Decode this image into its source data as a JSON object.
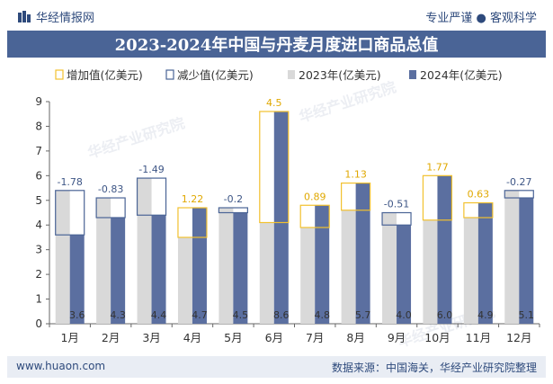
{
  "header": {
    "brand_left": "华经情报网",
    "brand_right": "专业严谨 ● 客观科学",
    "title": "2023-2024年中国与丹麦月度进口商品总值"
  },
  "footer": {
    "website": "www.huaon.com",
    "source": "数据来源：中国海关，华经产业研究院整理"
  },
  "watermarks": [
    "华经产业研究院",
    "www.huaon.com"
  ],
  "colors": {
    "increase": "#f2c12e",
    "decrease": "#4a6496",
    "series2023": "#d9d9d9",
    "series2024": "#5b6fa0",
    "title_band": "#4a6496"
  },
  "chart_data": {
    "type": "bar",
    "title": "2023-2024年中国与丹麦月度进口商品总值",
    "categories": [
      "1月",
      "2月",
      "3月",
      "4月",
      "5月",
      "6月",
      "7月",
      "8月",
      "9月",
      "10月",
      "11月",
      "12月"
    ],
    "series": [
      {
        "name": "2023年(亿美元)",
        "values": [
          5.4,
          5.1,
          5.9,
          3.5,
          4.7,
          4.1,
          3.9,
          4.6,
          4.5,
          4.2,
          4.3,
          5.4
        ]
      },
      {
        "name": "2024年(亿美元)",
        "values": [
          3.6,
          4.3,
          4.4,
          4.7,
          4.5,
          8.6,
          4.8,
          5.7,
          4.0,
          6.0,
          4.9,
          5.1
        ]
      }
    ],
    "changes": [
      -1.78,
      -0.83,
      -1.49,
      1.22,
      -0.2,
      4.5,
      0.89,
      1.13,
      -0.51,
      1.77,
      0.63,
      -0.27
    ],
    "change_labels": [
      "-1.78",
      "-0.83",
      "-1.49",
      "1.22",
      "-0.2",
      "4.5",
      "0.89",
      "1.13",
      "-0.51",
      "1.77",
      "0.63",
      "-0.27"
    ],
    "value_labels_2024": [
      "3.6",
      "4.3",
      "4.4",
      "4.7",
      "4.5",
      "8.6",
      "4.8",
      "5.7",
      "4.0",
      "6.0",
      "4.9",
      "5.1"
    ],
    "legend": [
      "增加值(亿美元)",
      "减少值(亿美元)",
      "2023年(亿美元)",
      "2024年(亿美元)"
    ],
    "legend_position": "top",
    "y_ticks": [
      "0",
      "1",
      "2",
      "3",
      "4",
      "5",
      "6",
      "7",
      "8",
      "9"
    ],
    "ylim": [
      0,
      9
    ],
    "grid": false
  }
}
